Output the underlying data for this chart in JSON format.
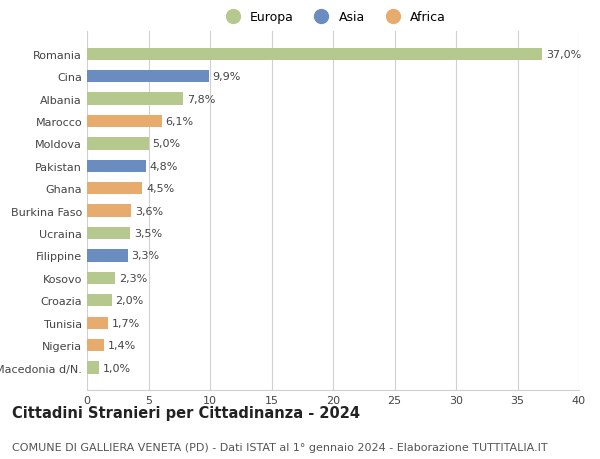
{
  "countries": [
    "Romania",
    "Cina",
    "Albania",
    "Marocco",
    "Moldova",
    "Pakistan",
    "Ghana",
    "Burkina Faso",
    "Ucraina",
    "Filippine",
    "Kosovo",
    "Croazia",
    "Tunisia",
    "Nigeria",
    "Macedonia d/N."
  ],
  "values": [
    37.0,
    9.9,
    7.8,
    6.1,
    5.0,
    4.8,
    4.5,
    3.6,
    3.5,
    3.3,
    2.3,
    2.0,
    1.7,
    1.4,
    1.0
  ],
  "continents": [
    "Europa",
    "Asia",
    "Europa",
    "Africa",
    "Europa",
    "Asia",
    "Africa",
    "Africa",
    "Europa",
    "Asia",
    "Europa",
    "Europa",
    "Africa",
    "Africa",
    "Europa"
  ],
  "colors": {
    "Europa": "#b5c98e",
    "Asia": "#6b8cbf",
    "Africa": "#e8ab6e"
  },
  "xlim": [
    0,
    40
  ],
  "xticks": [
    0,
    5,
    10,
    15,
    20,
    25,
    30,
    35,
    40
  ],
  "title": "Cittadini Stranieri per Cittadinanza - 2024",
  "subtitle": "COMUNE DI GALLIERA VENETA (PD) - Dati ISTAT al 1° gennaio 2024 - Elaborazione TUTTITALIA.IT",
  "background_color": "#ffffff",
  "grid_color": "#d0d0d0",
  "bar_height": 0.55,
  "title_fontsize": 10.5,
  "subtitle_fontsize": 8.0,
  "label_fontsize": 8.0,
  "tick_fontsize": 8.0,
  "legend_fontsize": 9.0
}
